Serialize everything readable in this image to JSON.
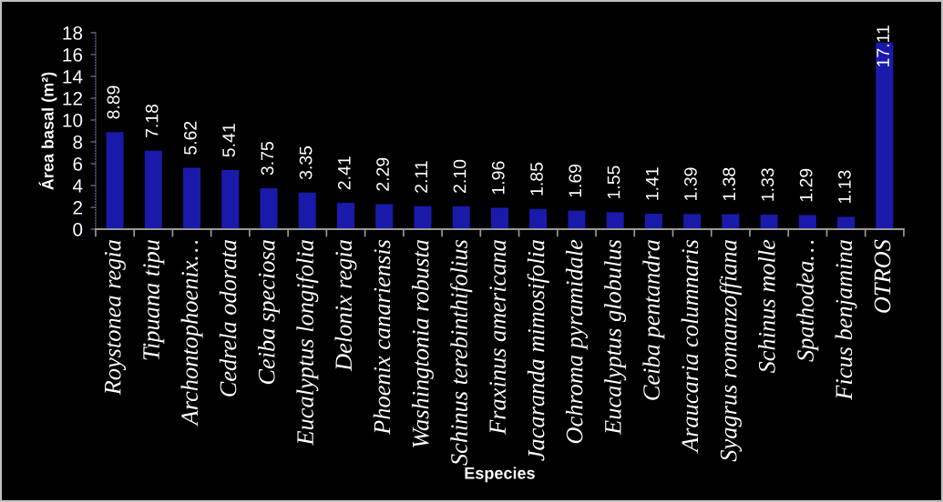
{
  "chart_data": {
    "type": "bar",
    "xlabel": "Especies",
    "ylabel": "Área basal (m²)",
    "categories": [
      "Roystonea regia",
      "Tipuana tipu",
      "Archontophoenix…",
      "Cedrela odorata",
      "Ceiba speciosa",
      "Eucalyptus longifolia",
      "Delonix regia",
      "Phoenix canariensis",
      "Washingtonia robusta",
      "Schinus terebinthifolius",
      "Fraxinus americana",
      "Jacaranda mimosifolia",
      "Ochroma pyramidale",
      "Eucalyptus globulus",
      "Ceiba pentandra",
      "Araucaria columnaris",
      "Syagrus romanzoffiana",
      "Schinus molle",
      "Spathodea…",
      "Ficus benjamina",
      "OTROS"
    ],
    "values": [
      8.89,
      7.18,
      5.62,
      5.41,
      3.75,
      3.35,
      2.41,
      2.29,
      2.11,
      2.1,
      1.96,
      1.85,
      1.69,
      1.55,
      1.41,
      1.39,
      1.38,
      1.33,
      1.29,
      1.13,
      17.11
    ],
    "value_labels": [
      "8.89",
      "7.18",
      "5.62",
      "5.41",
      "3.75",
      "3.35",
      "2.41",
      "2.29",
      "2.11",
      "2.10",
      "1.96",
      "1.85",
      "1.69",
      "1.55",
      "1.41",
      "1.39",
      "1.38",
      "1.33",
      "1.29",
      "1.13",
      "17.11"
    ],
    "color": "#1a1aaa",
    "ylim": [
      0,
      18
    ],
    "yticks": [
      0,
      2,
      4,
      6,
      8,
      10,
      12,
      14,
      16,
      18
    ]
  }
}
